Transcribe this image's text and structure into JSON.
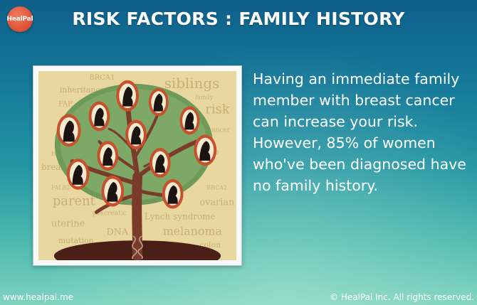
{
  "brand": {
    "logo_text": "HealPal"
  },
  "header": {
    "title": "RISK FACTORS : FAMILY HISTORY"
  },
  "illustration": {
    "words": [
      "BRCA1",
      "siblings",
      "inheritance",
      "family",
      "FAP",
      "risk",
      "cancer",
      "HNPCC",
      "gene",
      "breast",
      "PALB2",
      "BRCA2",
      "parent",
      "ovarian",
      "pancreatic",
      "uterine",
      "Lynch syndrome",
      "DNA",
      "melanoma",
      "mutation",
      "colon"
    ]
  },
  "main": {
    "body": "Having an immediate family member with breast cancer can increase your risk. However, 85% of women who've been diagnosed have no family history."
  },
  "footer": {
    "website": "www.healpal.me",
    "copyright": "© HealPal Inc. All rights reserved."
  },
  "colors": {
    "background_top": "#0e5f8a",
    "background_bottom": "#7fd3bf",
    "logo": "#e0553a",
    "tree_trunk": "#7a3b2a",
    "foliage": "#6f9a5a",
    "portrait_frame": "#c8502c"
  }
}
